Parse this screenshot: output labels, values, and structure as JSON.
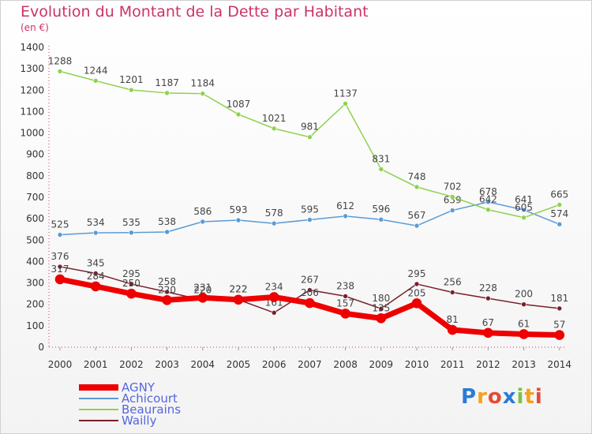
{
  "title": "Evolution du Montant de la Dette par Habitant",
  "subtitle": "(en €)",
  "chart_data": {
    "type": "line",
    "title": "Evolution du Montant de la Dette par Habitant",
    "ylabel": "(en €)",
    "xlabel": "",
    "x": [
      "2000",
      "2001",
      "2002",
      "2003",
      "2004",
      "2005",
      "2006",
      "2007",
      "2008",
      "2009",
      "2010",
      "2011",
      "2012",
      "2013",
      "2014"
    ],
    "ylim": [
      0,
      1400
    ],
    "yticks": [
      0,
      100,
      200,
      300,
      400,
      500,
      600,
      700,
      800,
      900,
      1000,
      1100,
      1200,
      1300,
      1400
    ],
    "grid": false,
    "legend_position": "bottom-left",
    "series": [
      {
        "name": "Wailly",
        "color": "#7a1f2b",
        "width": 1.5,
        "values": [
          376,
          345,
          295,
          258,
          220,
          222,
          161,
          267,
          238,
          180,
          295,
          256,
          228,
          200,
          181
        ]
      },
      {
        "name": "Achicourt",
        "color": "#5b9bd5",
        "width": 1.5,
        "values": [
          525,
          534,
          535,
          538,
          586,
          593,
          578,
          595,
          612,
          596,
          567,
          639,
          678,
          641,
          574
        ]
      },
      {
        "name": "Beaurains",
        "color": "#8fd14f",
        "width": 1.5,
        "values": [
          1288,
          1244,
          1201,
          1187,
          1184,
          1087,
          1021,
          981,
          1137,
          831,
          748,
          702,
          642,
          605,
          665
        ]
      },
      {
        "name": "AGNY",
        "color": "#ee0000",
        "width": 7,
        "values": [
          317,
          284,
          250,
          220,
          231,
          222,
          234,
          206,
          157,
          135,
          205,
          81,
          67,
          61,
          57
        ]
      }
    ]
  },
  "legend": [
    {
      "name": "AGNY",
      "color": "#ee0000",
      "thickness": 8
    },
    {
      "name": "Achicourt",
      "color": "#5b9bd5",
      "thickness": 2
    },
    {
      "name": "Beaurains",
      "color": "#8fd14f",
      "thickness": 2
    },
    {
      "name": "Wailly",
      "color": "#7a1f2b",
      "thickness": 2
    }
  ],
  "logo": {
    "text": "Proxiti"
  }
}
